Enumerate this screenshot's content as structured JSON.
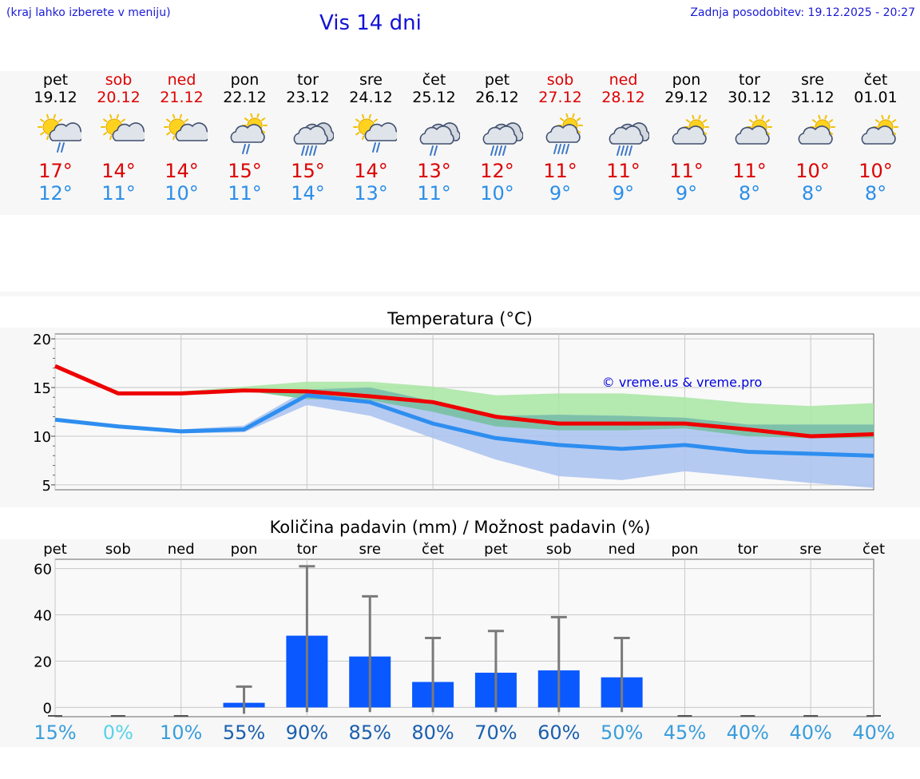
{
  "header": {
    "hint": "(kraj lahko izberete v meniju)",
    "title": "Vis 14 dni",
    "updated_label": "Zadnja posodobitev:",
    "updated_value": "19.12.2025 - 20:27"
  },
  "forecast": [
    {
      "weekday": "pet",
      "date": "19.12",
      "weekend": false,
      "icon": "sun-cloud-rain-icon",
      "tmax": "17°",
      "tmin": "12°"
    },
    {
      "weekday": "sob",
      "date": "20.12",
      "weekend": true,
      "icon": "sun-small-cloud-icon",
      "tmax": "14°",
      "tmin": "11°"
    },
    {
      "weekday": "ned",
      "date": "21.12",
      "weekend": true,
      "icon": "sun-small-cloud-icon",
      "tmax": "14°",
      "tmin": "10°"
    },
    {
      "weekday": "pon",
      "date": "22.12",
      "weekend": false,
      "icon": "cloud-sun-rain-icon",
      "tmax": "15°",
      "tmin": "11°"
    },
    {
      "weekday": "tor",
      "date": "23.12",
      "weekend": false,
      "icon": "cloud-heavy-rain-icon",
      "tmax": "15°",
      "tmin": "14°"
    },
    {
      "weekday": "sre",
      "date": "24.12",
      "weekend": false,
      "icon": "sun-cloud-rain-icon",
      "tmax": "14°",
      "tmin": "13°"
    },
    {
      "weekday": "čet",
      "date": "25.12",
      "weekend": false,
      "icon": "cloud-rain-icon",
      "tmax": "13°",
      "tmin": "11°"
    },
    {
      "weekday": "pet",
      "date": "26.12",
      "weekend": false,
      "icon": "cloud-heavy-rain-icon",
      "tmax": "12°",
      "tmin": "10°"
    },
    {
      "weekday": "sob",
      "date": "27.12",
      "weekend": true,
      "icon": "cloud-sun-heavy-rain-icon",
      "tmax": "11°",
      "tmin": "9°"
    },
    {
      "weekday": "ned",
      "date": "28.12",
      "weekend": true,
      "icon": "cloud-heavy-rain-icon",
      "tmax": "11°",
      "tmin": "9°"
    },
    {
      "weekday": "pon",
      "date": "29.12",
      "weekend": false,
      "icon": "sun-cloud-icon",
      "tmax": "11°",
      "tmin": "9°"
    },
    {
      "weekday": "tor",
      "date": "30.12",
      "weekend": false,
      "icon": "sun-cloud-icon",
      "tmax": "11°",
      "tmin": "8°"
    },
    {
      "weekday": "sre",
      "date": "31.12",
      "weekend": false,
      "icon": "sun-cloud-icon",
      "tmax": "10°",
      "tmin": "8°"
    },
    {
      "weekday": "čet",
      "date": "01.01",
      "weekend": false,
      "icon": "sun-cloud-icon",
      "tmax": "10°",
      "tmin": "8°"
    }
  ],
  "chart_data": [
    {
      "type": "line",
      "title": "Temperatura (°C)",
      "ylim": [
        4.5,
        20.5
      ],
      "yticks": [
        5,
        10,
        15,
        20
      ],
      "grid": true,
      "watermark": "© vreme.us & vreme.pro",
      "x": [
        0,
        1,
        2,
        3,
        4,
        5,
        6,
        7,
        8,
        9,
        10,
        11,
        12,
        13
      ],
      "series": [
        {
          "name": "max",
          "color": "#ee0000",
          "values": [
            17.2,
            14.4,
            14.4,
            14.7,
            14.6,
            14.1,
            13.5,
            12.0,
            11.3,
            11.3,
            11.3,
            10.7,
            10.0,
            10.2
          ]
        },
        {
          "name": "min",
          "color": "#2e8ef0",
          "values": [
            11.7,
            11.0,
            10.5,
            10.7,
            14.2,
            13.5,
            11.3,
            9.8,
            9.1,
            8.7,
            9.1,
            8.4,
            8.2,
            8.0
          ]
        }
      ],
      "bands": [
        {
          "name": "max_range",
          "color": "#a8e6a3",
          "low": [
            17.2,
            14.4,
            14.4,
            14.7,
            13.8,
            13.7,
            12.5,
            11.0,
            10.6,
            10.6,
            10.8,
            10.0,
            9.8,
            9.8
          ],
          "high": [
            17.2,
            14.4,
            14.6,
            15.1,
            15.6,
            15.6,
            15.1,
            14.2,
            14.4,
            14.4,
            14.0,
            13.4,
            13.1,
            13.4
          ]
        },
        {
          "name": "min_range",
          "color": "#a9c2f0",
          "low": [
            11.7,
            11.0,
            10.3,
            10.4,
            13.2,
            12.1,
            9.8,
            7.6,
            5.9,
            5.5,
            6.4,
            5.8,
            5.2,
            4.7
          ],
          "high": [
            11.7,
            11.0,
            10.7,
            11.1,
            14.8,
            15.0,
            13.6,
            12.1,
            12.2,
            12.1,
            11.9,
            11.2,
            11.2,
            11.2
          ]
        }
      ]
    },
    {
      "type": "bar",
      "title": "Količina padavin (mm) / Možnost padavin (%)",
      "categories": [
        "pet",
        "sob",
        "ned",
        "pon",
        "tor",
        "sre",
        "čet",
        "pet",
        "sob",
        "ned",
        "pon",
        "tor",
        "sre",
        "čet"
      ],
      "ylim": [
        -4,
        64
      ],
      "yticks": [
        0,
        20,
        40,
        60
      ],
      "grid": true,
      "values": [
        0,
        0,
        0,
        2,
        31,
        22,
        11,
        15,
        16,
        13,
        0,
        0,
        0,
        0
      ],
      "error_high": [
        0,
        0,
        0,
        9,
        61,
        48,
        30,
        33,
        39,
        30,
        0,
        0,
        0,
        0
      ],
      "probability": [
        "15%",
        "0%",
        "10%",
        "55%",
        "90%",
        "85%",
        "80%",
        "70%",
        "60%",
        "50%",
        "45%",
        "40%",
        "40%",
        "40%"
      ],
      "probability_colors": [
        "#3a9ddc",
        "#59d2ea",
        "#3a9ddc",
        "#1b5fae",
        "#1b5fae",
        "#1b5fae",
        "#1b5fae",
        "#1b5fae",
        "#1b5fae",
        "#3a9ddc",
        "#3a9ddc",
        "#3a9ddc",
        "#3a9ddc",
        "#3a9ddc"
      ],
      "bar_color": "#0a58ff",
      "error_color": "#7a7a7a"
    }
  ]
}
